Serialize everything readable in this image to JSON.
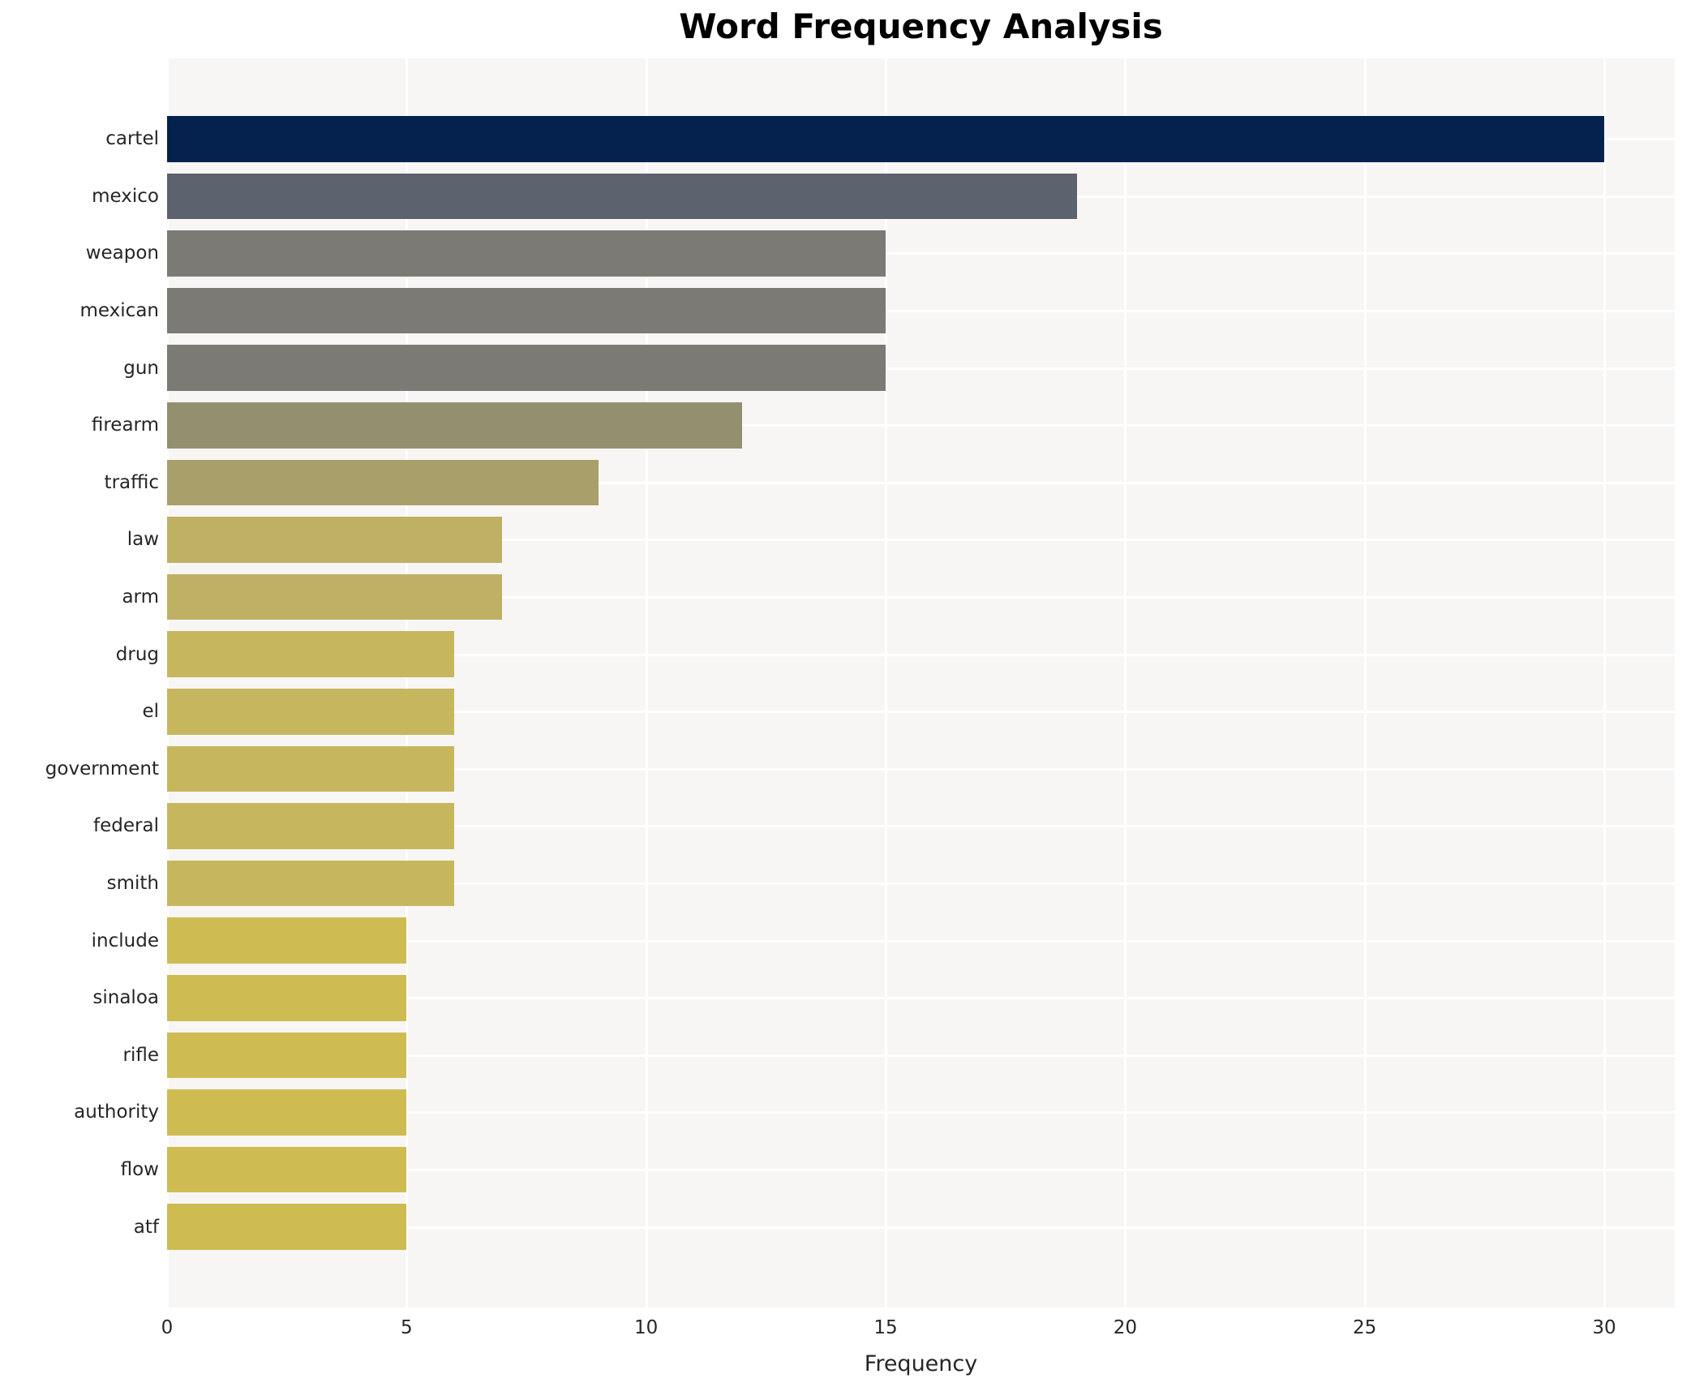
{
  "title": "Word Frequency Analysis",
  "xlabel": "Frequency",
  "plot_background": "#f7f6f4",
  "gridline_color": "#ffffff",
  "text_color": "#262626",
  "chart_data": {
    "type": "bar",
    "orientation": "horizontal",
    "title": "Word Frequency Analysis",
    "xlabel": "Frequency",
    "ylabel": "",
    "categories": [
      "cartel",
      "mexico",
      "weapon",
      "mexican",
      "gun",
      "firearm",
      "traffic",
      "law",
      "arm",
      "drug",
      "el",
      "government",
      "federal",
      "smith",
      "include",
      "sinaloa",
      "rifle",
      "authority",
      "flow",
      "atf"
    ],
    "values": [
      30,
      19,
      15,
      15,
      15,
      12,
      9,
      7,
      7,
      6,
      6,
      6,
      6,
      6,
      5,
      5,
      5,
      5,
      5,
      5
    ],
    "bar_colors": [
      "#05224e",
      "#5c626e",
      "#7c7a74",
      "#7c7a74",
      "#7c7a74",
      "#92906f",
      "#a89f6b",
      "#bfb164",
      "#bfb164",
      "#c6b75e",
      "#c6b75e",
      "#c6b75e",
      "#c6b75e",
      "#c6b75e",
      "#cebc53",
      "#cebc53",
      "#cebc53",
      "#cebc53",
      "#cebc53",
      "#cebc53"
    ],
    "xticks": [
      0,
      5,
      10,
      15,
      20,
      25,
      30
    ],
    "xlim": [
      0,
      31.5
    ],
    "grid": "white vertical gridlines at x ticks and horizontal gridlines at bar centers, drawn behind bars",
    "legend": "none",
    "colormap_note": "bars shaded dark navy (high frequency) through gray to khaki gold (low frequency)"
  }
}
